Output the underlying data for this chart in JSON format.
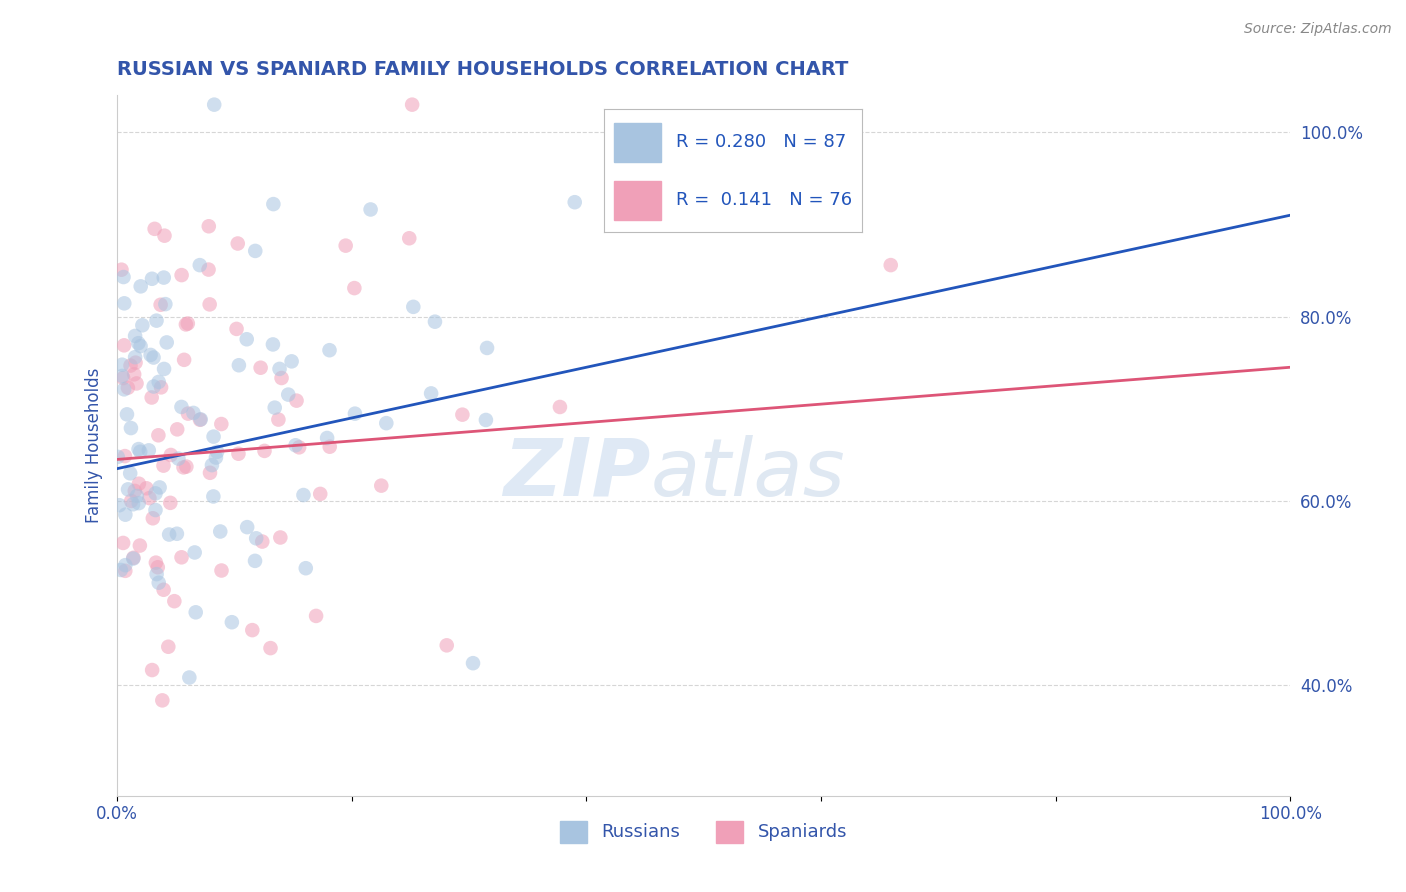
{
  "title": "RUSSIAN VS SPANIARD FAMILY HOUSEHOLDS CORRELATION CHART",
  "source": "Source: ZipAtlas.com",
  "ylabel": "Family Households",
  "xlim": [
    0.0,
    100.0
  ],
  "ylim": [
    28.0,
    104.0
  ],
  "x_ticks": [
    0.0,
    20.0,
    40.0,
    60.0,
    80.0,
    100.0
  ],
  "x_tick_labels": [
    "0.0%",
    "",
    "",
    "",
    "",
    "100.0%"
  ],
  "y_ticks": [
    40.0,
    60.0,
    80.0,
    100.0
  ],
  "y_tick_labels": [
    "40.0%",
    "60.0%",
    "80.0%",
    "100.0%"
  ],
  "russian_color": "#a8c4e0",
  "spaniard_color": "#f0a0b8",
  "russian_line_color": "#2255bb",
  "spaniard_line_color": "#dd5577",
  "r_russian": 0.28,
  "n_russian": 87,
  "r_spaniard": 0.141,
  "n_spaniard": 76,
  "watermark_zip": "ZIP",
  "watermark_atlas": "atlas",
  "background_color": "#ffffff",
  "grid_color": "#cccccc",
  "title_color": "#3355aa",
  "axis_label_color": "#3355aa",
  "tick_color": "#3355aa",
  "dot_size": 110,
  "dot_alpha": 0.55,
  "line_width": 2.0,
  "ru_line_x0": 0,
  "ru_line_y0": 63.5,
  "ru_line_x1": 100,
  "ru_line_y1": 91.0,
  "sp_line_x0": 0,
  "sp_line_y0": 64.5,
  "sp_line_x1": 100,
  "sp_line_y1": 74.5
}
